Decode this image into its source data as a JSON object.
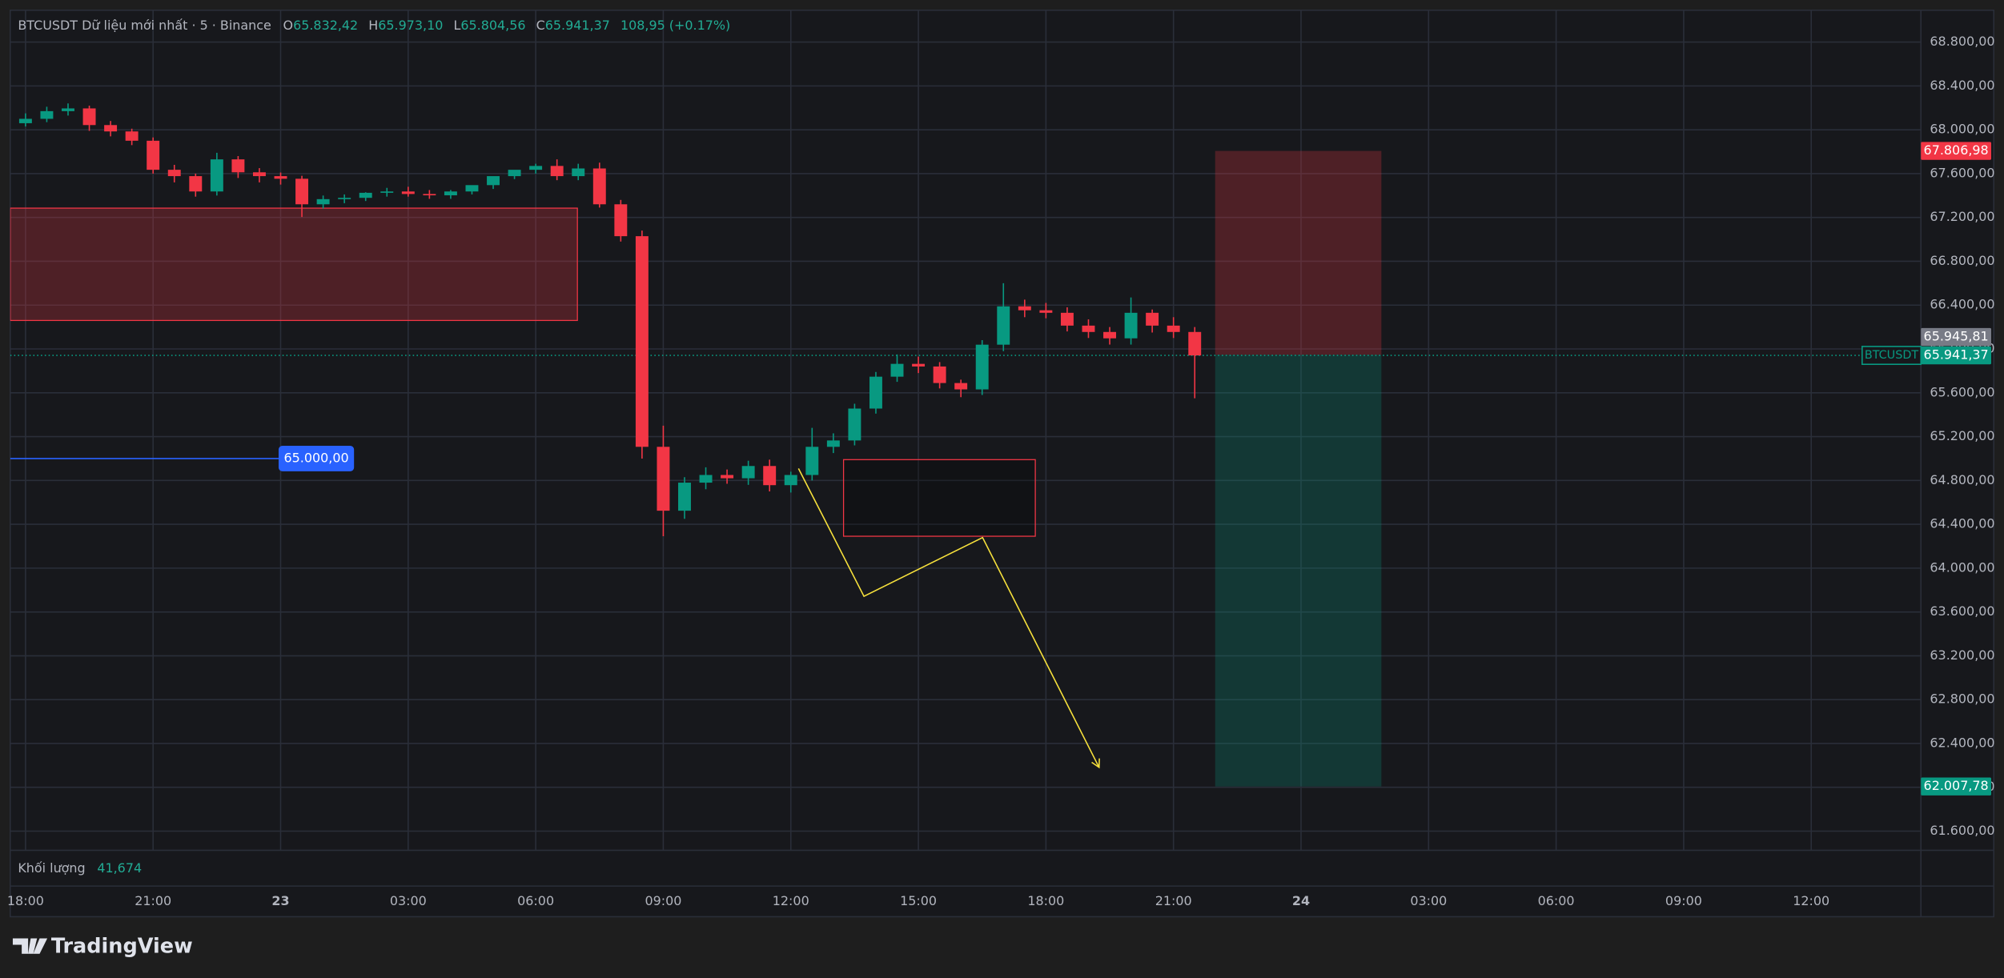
{
  "chart_data": {
    "type": "candlestick",
    "legend": {
      "symbol": "BTCUSDT Dữ liệu mới nhất · 5 · Binance",
      "o_label": "O",
      "o_value": "65.832,42",
      "h_label": "H",
      "h_value": "65.973,10",
      "l_label": "L",
      "l_value": "65.804,56",
      "c_label": "C",
      "c_value": "65.941,37",
      "change": "108,95 (+0.17%)"
    },
    "volume": {
      "label": "Khối lượng",
      "value": "41,674"
    },
    "brand": "TradingView",
    "up_color": "#089981",
    "down_color": "#f23645",
    "grid": true,
    "xlim": [
      -0.36,
      44.58
    ],
    "xticks": [
      {
        "value": 0,
        "label": "18:00"
      },
      {
        "value": 3,
        "label": "21:00"
      },
      {
        "value": 6,
        "label": "23"
      },
      {
        "value": 9,
        "label": "03:00"
      },
      {
        "value": 12,
        "label": "06:00"
      },
      {
        "value": 15,
        "label": "09:00"
      },
      {
        "value": 18,
        "label": "12:00"
      },
      {
        "value": 21,
        "label": "15:00"
      },
      {
        "value": 24,
        "label": "18:00"
      },
      {
        "value": 27,
        "label": "21:00"
      },
      {
        "value": 30,
        "label": "24"
      },
      {
        "value": 33,
        "label": "03:00"
      },
      {
        "value": 36,
        "label": "06:00"
      },
      {
        "value": 39,
        "label": "09:00"
      },
      {
        "value": 42,
        "label": "12:00"
      }
    ],
    "ylim": [
      61425,
      69091
    ],
    "yticks": [
      {
        "value": 61600,
        "label": "61.600,00"
      },
      {
        "value": 62000,
        "label": "62.000,00"
      },
      {
        "value": 62400,
        "label": "62.400,00"
      },
      {
        "value": 62800,
        "label": "62.800,00"
      },
      {
        "value": 63200,
        "label": "63.200,00"
      },
      {
        "value": 63600,
        "label": "63.600,00"
      },
      {
        "value": 64000,
        "label": "64.000,00"
      },
      {
        "value": 64400,
        "label": "64.400,00"
      },
      {
        "value": 64800,
        "label": "64.800,00"
      },
      {
        "value": 65200,
        "label": "65.200,00"
      },
      {
        "value": 65600,
        "label": "65.600,00"
      },
      {
        "value": 66000,
        "label": "66.000,00"
      },
      {
        "value": 66400,
        "label": "66.400,00"
      },
      {
        "value": 66800,
        "label": "66.800,00"
      },
      {
        "value": 67200,
        "label": "67.200,00"
      },
      {
        "value": 67600,
        "label": "67.600,00"
      },
      {
        "value": 68000,
        "label": "68.000,00"
      },
      {
        "value": 68400,
        "label": "68.400,00"
      },
      {
        "value": 68800,
        "label": "68.800,00"
      }
    ],
    "x": [
      0,
      0.5,
      1,
      1.5,
      2,
      2.5,
      3,
      3.5,
      4,
      4.5,
      5,
      5.5,
      6,
      6.5,
      7,
      7.5,
      8,
      8.5,
      9,
      9.5,
      10,
      10.5,
      11,
      11.5,
      12,
      12.5,
      13,
      13.5,
      14,
      14.5,
      15,
      15.5,
      16,
      16.5,
      17,
      17.5,
      18,
      18.5,
      19,
      19.5,
      20,
      20.5,
      21,
      21.5,
      22,
      22.5,
      23,
      23.5,
      24,
      24.5,
      25,
      25.5,
      26,
      26.5,
      27,
      27.5
    ],
    "open": [
      68060,
      68100,
      68170,
      68195,
      68043,
      67985,
      67900,
      67635,
      67577,
      67437,
      67730,
      67612,
      67577,
      67553,
      67320,
      67367,
      67379,
      67425,
      67437,
      67414,
      67402,
      67437,
      67495,
      67577,
      67635,
      67670,
      67577,
      67647,
      67320,
      67029,
      65107,
      64524,
      64780,
      64850,
      64820,
      64932,
      64757,
      64850,
      65107,
      65165,
      65456,
      65747,
      65864,
      65840,
      65689,
      65631,
      66039,
      66389,
      66353,
      66330,
      66213,
      66155,
      66097,
      66330,
      66213,
      66155
    ],
    "high": [
      68150,
      68210,
      68240,
      68220,
      68080,
      68010,
      67930,
      67680,
      67600,
      67790,
      67760,
      67650,
      67610,
      67580,
      67400,
      67410,
      67430,
      67470,
      67480,
      67450,
      67450,
      67480,
      67540,
      67620,
      67690,
      67730,
      67690,
      67700,
      67360,
      67080,
      65300,
      64830,
      64920,
      64900,
      64980,
      64990,
      64880,
      65280,
      65230,
      65500,
      65790,
      65950,
      65930,
      65880,
      65720,
      66080,
      66600,
      66450,
      66420,
      66380,
      66270,
      66200,
      66470,
      66360,
      66290,
      66200
    ],
    "low": [
      68030,
      68070,
      68130,
      67990,
      67940,
      67860,
      67600,
      67520,
      67390,
      67400,
      67560,
      67520,
      67500,
      67204,
      67280,
      67330,
      67350,
      67390,
      67390,
      67370,
      67370,
      67410,
      67460,
      67550,
      67600,
      67540,
      67540,
      67290,
      66980,
      65000,
      64291,
      64450,
      64720,
      64770,
      64760,
      64700,
      64690,
      64800,
      65050,
      65120,
      65410,
      65700,
      65780,
      65640,
      65560,
      65580,
      65980,
      66290,
      66280,
      66160,
      66100,
      66040,
      66040,
      66150,
      66100,
      65550
    ],
    "close": [
      68100,
      68170,
      68195,
      68043,
      67985,
      67900,
      67635,
      67577,
      67437,
      67730,
      67612,
      67577,
      67553,
      67320,
      67367,
      67379,
      67425,
      67437,
      67414,
      67402,
      67437,
      67495,
      67577,
      67635,
      67670,
      67577,
      67647,
      67320,
      67029,
      65107,
      64524,
      64780,
      64850,
      64820,
      64932,
      64757,
      64850,
      65107,
      65165,
      65456,
      65747,
      65864,
      65840,
      65689,
      65631,
      66039,
      66389,
      66353,
      66330,
      66213,
      66155,
      66097,
      66330,
      66213,
      66155,
      65941
    ],
    "last_price": {
      "symbol": "BTCUSDT",
      "value": 65941.37,
      "label": "65.941,37"
    },
    "alert_line": {
      "value": 65000,
      "label": "65.000,00",
      "color": "#2962ff"
    },
    "zones": [
      {
        "x": [
          -0.36,
          12.98
        ],
        "y": [
          66260,
          67285
        ],
        "color": "#f23645"
      },
      {
        "x": [
          19.24,
          23.75
        ],
        "y": [
          64291,
          64990
        ],
        "color": "#f23645"
      }
    ],
    "path": {
      "x": [
        18.18,
        19.72,
        22.51,
        25.25
      ],
      "y": [
        64909,
        63743,
        64279,
        62182
      ],
      "color": "#f7e13c"
    },
    "position": {
      "x": [
        27.98,
        31.89
      ],
      "stop": {
        "value": 67806.98,
        "label": "67.806,98"
      },
      "entry": {
        "value": 65945.81,
        "label": "65.945,81"
      },
      "target": {
        "value": 62007.78,
        "label": "62.007,78"
      }
    }
  }
}
